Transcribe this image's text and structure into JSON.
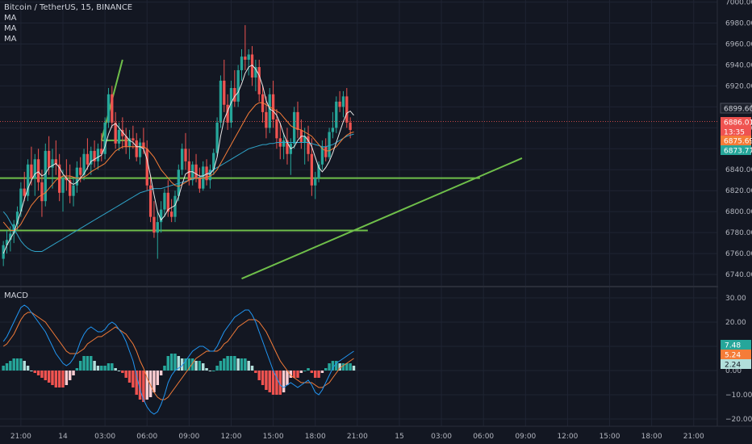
{
  "chart_data": {
    "type": "candlestick",
    "title": "Bitcoin / TetherUS, 15, BINANCE",
    "indicators": [
      "MA",
      "MA",
      "MA"
    ],
    "price_axis": {
      "ticks": [
        6740,
        6760,
        6780,
        6800,
        6820,
        6840,
        6860,
        6880,
        6900,
        6920,
        6940,
        6960,
        6980,
        7000
      ],
      "labels": [
        "6740.00",
        "6760.00",
        "6780.00",
        "6800.00",
        "6820.00",
        "6840.00",
        "6860.00",
        "6880.00",
        "6900.00",
        "6920.00",
        "6940.00",
        "6960.00",
        "6980.00",
        "7000.00"
      ],
      "range": [
        6730,
        7002
      ]
    },
    "price_badges": [
      {
        "label": "6899.60",
        "value": 6899.6,
        "color": "#1e222d",
        "text_color": "#d1d4dc"
      },
      {
        "label": "6886.01",
        "value": 6886.01,
        "color": "#ef5350",
        "text_color": "#ffffff"
      },
      {
        "label": "13:35",
        "value": 6880.5,
        "color": "#ef5350",
        "text_color": "#ffffff"
      },
      {
        "label": "6875.69",
        "value": 6875.69,
        "color": "#f57c38",
        "text_color": "#ffffff"
      },
      {
        "label": "6873.77",
        "value": 6873.77,
        "color": "#26a69a",
        "text_color": "#ffffff"
      }
    ],
    "x_axis": {
      "labels": [
        "21:00",
        "14",
        "03:00",
        "06:00",
        "09:00",
        "12:00",
        "15:00",
        "18:00",
        "21:00",
        "15",
        "03:00",
        "06:00",
        "09:00",
        "12:00",
        "15:00",
        "18:00",
        "21:00"
      ],
      "bar_index": [
        5,
        17,
        29,
        41,
        53,
        65,
        77,
        89,
        101,
        113,
        125,
        137,
        149,
        161,
        173,
        185,
        197
      ]
    },
    "bars_total": 204,
    "candles": [
      [
        6755,
        6772,
        6748,
        6768
      ],
      [
        6768,
        6782,
        6760,
        6773
      ],
      [
        6773,
        6786,
        6762,
        6779
      ],
      [
        6779,
        6792,
        6770,
        6788
      ],
      [
        6788,
        6805,
        6782,
        6800
      ],
      [
        6800,
        6828,
        6795,
        6822
      ],
      [
        6822,
        6838,
        6810,
        6815
      ],
      [
        6815,
        6850,
        6810,
        6845
      ],
      [
        6845,
        6862,
        6825,
        6832
      ],
      [
        6832,
        6855,
        6815,
        6850
      ],
      [
        6850,
        6860,
        6820,
        6828
      ],
      [
        6828,
        6840,
        6795,
        6810
      ],
      [
        6810,
        6865,
        6805,
        6858
      ],
      [
        6858,
        6872,
        6835,
        6842
      ],
      [
        6842,
        6860,
        6822,
        6850
      ],
      [
        6850,
        6868,
        6835,
        6845
      ],
      [
        6845,
        6855,
        6810,
        6818
      ],
      [
        6818,
        6840,
        6800,
        6832
      ],
      [
        6832,
        6850,
        6820,
        6830
      ],
      [
        6830,
        6845,
        6808,
        6815
      ],
      [
        6815,
        6832,
        6805,
        6825
      ],
      [
        6825,
        6848,
        6818,
        6842
      ],
      [
        6842,
        6852,
        6828,
        6835
      ],
      [
        6835,
        6860,
        6830,
        6855
      ],
      [
        6855,
        6870,
        6840,
        6845
      ],
      [
        6845,
        6862,
        6835,
        6858
      ],
      [
        6858,
        6868,
        6842,
        6848
      ],
      [
        6848,
        6865,
        6840,
        6860
      ],
      [
        6860,
        6875,
        6848,
        6855
      ],
      [
        6855,
        6890,
        6850,
        6885
      ],
      [
        6885,
        6918,
        6880,
        6912
      ],
      [
        6912,
        6920,
        6880,
        6885
      ],
      [
        6885,
        6895,
        6860,
        6865
      ],
      [
        6865,
        6885,
        6858,
        6878
      ],
      [
        6878,
        6890,
        6860,
        6872
      ],
      [
        6872,
        6880,
        6855,
        6862
      ],
      [
        6862,
        6878,
        6850,
        6870
      ],
      [
        6870,
        6882,
        6860,
        6868
      ],
      [
        6868,
        6875,
        6848,
        6852
      ],
      [
        6852,
        6870,
        6845,
        6866
      ],
      [
        6866,
        6880,
        6855,
        6860
      ],
      [
        6860,
        6868,
        6820,
        6825
      ],
      [
        6825,
        6835,
        6790,
        6795
      ],
      [
        6795,
        6810,
        6775,
        6780
      ],
      [
        6780,
        6800,
        6755,
        6790
      ],
      [
        6790,
        6810,
        6780,
        6802
      ],
      [
        6802,
        6822,
        6795,
        6818
      ],
      [
        6818,
        6830,
        6795,
        6800
      ],
      [
        6800,
        6812,
        6790,
        6795
      ],
      [
        6795,
        6820,
        6790,
        6815
      ],
      [
        6815,
        6845,
        6810,
        6840
      ],
      [
        6840,
        6865,
        6835,
        6860
      ],
      [
        6860,
        6875,
        6840,
        6848
      ],
      [
        6848,
        6860,
        6825,
        6830
      ],
      [
        6830,
        6848,
        6825,
        6845
      ],
      [
        6845,
        6855,
        6828,
        6832
      ],
      [
        6832,
        6842,
        6818,
        6822
      ],
      [
        6822,
        6848,
        6820,
        6843
      ],
      [
        6843,
        6850,
        6825,
        6830
      ],
      [
        6830,
        6845,
        6822,
        6840
      ],
      [
        6840,
        6860,
        6835,
        6856
      ],
      [
        6856,
        6890,
        6852,
        6885
      ],
      [
        6885,
        6930,
        6880,
        6925
      ],
      [
        6925,
        6945,
        6895,
        6902
      ],
      [
        6902,
        6912,
        6878,
        6885
      ],
      [
        6885,
        6925,
        6880,
        6918
      ],
      [
        6918,
        6935,
        6900,
        6905
      ],
      [
        6905,
        6940,
        6900,
        6935
      ],
      [
        6935,
        6955,
        6925,
        6948
      ],
      [
        6948,
        6978,
        6935,
        6945
      ],
      [
        6945,
        6955,
        6930,
        6950
      ],
      [
        6950,
        6958,
        6920,
        6928
      ],
      [
        6928,
        6945,
        6915,
        6938
      ],
      [
        6938,
        6945,
        6905,
        6912
      ],
      [
        6912,
        6920,
        6885,
        6895
      ],
      [
        6895,
        6910,
        6870,
        6880
      ],
      [
        6880,
        6918,
        6875,
        6912
      ],
      [
        6912,
        6925,
        6880,
        6888
      ],
      [
        6888,
        6898,
        6860,
        6870
      ],
      [
        6870,
        6885,
        6850,
        6862
      ],
      [
        6862,
        6875,
        6850,
        6868
      ],
      [
        6868,
        6880,
        6845,
        6855
      ],
      [
        6855,
        6870,
        6835,
        6865
      ],
      [
        6865,
        6900,
        6860,
        6895
      ],
      [
        6895,
        6905,
        6870,
        6878
      ],
      [
        6878,
        6888,
        6860,
        6866
      ],
      [
        6866,
        6880,
        6845,
        6872
      ],
      [
        6872,
        6882,
        6848,
        6855
      ],
      [
        6855,
        6870,
        6815,
        6825
      ],
      [
        6825,
        6838,
        6812,
        6832
      ],
      [
        6832,
        6848,
        6828,
        6845
      ],
      [
        6845,
        6868,
        6840,
        6862
      ],
      [
        6862,
        6870,
        6848,
        6852
      ],
      [
        6852,
        6880,
        6850,
        6876
      ],
      [
        6876,
        6895,
        6870,
        6880
      ],
      [
        6880,
        6910,
        6875,
        6905
      ],
      [
        6905,
        6915,
        6895,
        6900
      ],
      [
        6900,
        6915,
        6890,
        6910
      ],
      [
        6910,
        6918,
        6880,
        6885
      ],
      [
        6885,
        6890,
        6870,
        6878
      ]
    ],
    "ma_fast": [
      6760,
      6768,
      6774,
      6780,
      6790,
      6800,
      6812,
      6822,
      6830,
      6836,
      6838,
      6834,
      6836,
      6842,
      6844,
      6846,
      6842,
      6836,
      6832,
      6828,
      6826,
      6828,
      6832,
      6836,
      6842,
      6848,
      6850,
      6852,
      6854,
      6862,
      6874,
      6882,
      6884,
      6880,
      6876,
      6872,
      6868,
      6866,
      6862,
      6862,
      6860,
      6850,
      6834,
      6816,
      6800,
      6792,
      6796,
      6802,
      6804,
      6806,
      6814,
      6826,
      6836,
      6838,
      6838,
      6836,
      6834,
      6834,
      6836,
      6836,
      6840,
      6852,
      6872,
      6888,
      6896,
      6904,
      6910,
      6914,
      6922,
      6932,
      6938,
      6940,
      6936,
      6930,
      6920,
      6906,
      6898,
      6896,
      6892,
      6884,
      6874,
      6866,
      6860,
      6862,
      6868,
      6872,
      6872,
      6868,
      6862,
      6852,
      6842,
      6838,
      6842,
      6848,
      6856,
      6866,
      6876,
      6886,
      6894,
      6896,
      6892
    ],
    "ma_mid": [
      6790,
      6786,
      6782,
      6782,
      6784,
      6788,
      6794,
      6800,
      6806,
      6810,
      6814,
      6816,
      6818,
      6822,
      6826,
      6830,
      6832,
      6834,
      6834,
      6834,
      6833,
      6832,
      6832,
      6833,
      6835,
      6838,
      6840,
      6842,
      6844,
      6846,
      6850,
      6854,
      6858,
      6860,
      6862,
      6862,
      6862,
      6862,
      6862,
      6862,
      6862,
      6860,
      6856,
      6852,
      6846,
      6840,
      6836,
      6832,
      6828,
      6825,
      6824,
      6826,
      6828,
      6830,
      6832,
      6832,
      6832,
      6832,
      6833,
      6834,
      6836,
      6840,
      6846,
      6852,
      6858,
      6864,
      6870,
      6876,
      6882,
      6888,
      6894,
      6898,
      6902,
      6904,
      6904,
      6902,
      6900,
      6898,
      6896,
      6894,
      6890,
      6886,
      6882,
      6880,
      6879,
      6878,
      6876,
      6874,
      6872,
      6868,
      6864,
      6860,
      6858,
      6858,
      6860,
      6862,
      6866,
      6870,
      6873,
      6875,
      6876
    ],
    "ma_slow": [
      6800,
      6796,
      6790,
      6784,
      6778,
      6772,
      6768,
      6765,
      6763,
      6762,
      6762,
      6762,
      6764,
      6766,
      6768,
      6770,
      6772,
      6774,
      6776,
      6778,
      6780,
      6782,
      6784,
      6786,
      6788,
      6790,
      6792,
      6794,
      6796,
      6798,
      6800,
      6802,
      6804,
      6806,
      6808,
      6810,
      6812,
      6814,
      6816,
      6818,
      6819,
      6820,
      6821,
      6822,
      6822,
      6822,
      6823,
      6824,
      6825,
      6826,
      6827,
      6828,
      6829,
      6830,
      6831,
      6832,
      6833,
      6834,
      6836,
      6838,
      6840,
      6842,
      6844,
      6846,
      6848,
      6850,
      6852,
      6854,
      6856,
      6858,
      6860,
      6861,
      6862,
      6863,
      6864,
      6864,
      6865,
      6865,
      6866,
      6866,
      6866,
      6866,
      6866,
      6866,
      6866,
      6866,
      6866,
      6866,
      6865,
      6864,
      6863,
      6862,
      6862,
      6863,
      6864,
      6866,
      6868,
      6870,
      6872,
      6873,
      6874
    ],
    "trend_lines": [
      {
        "points": [
          [
            -2,
            6832
          ],
          [
            136,
            6832
          ]
        ],
        "color": "#6fbf4a"
      },
      {
        "points": [
          [
            -2,
            6782
          ],
          [
            104,
            6782
          ]
        ],
        "color": "#6fbf4a"
      },
      {
        "points": [
          [
            68,
            6736
          ],
          [
            148,
            6851
          ]
        ],
        "color": "#6fbf4a"
      },
      {
        "points": [
          [
            28,
            6868
          ],
          [
            34,
            6945
          ]
        ],
        "color": "#6fbf4a"
      },
      {
        "points": [
          [
            28,
            6868
          ],
          [
            36,
            6868
          ]
        ],
        "color": "#6fbf4a"
      }
    ],
    "macd": {
      "title": "MACD",
      "axis_ticks": [
        30,
        20,
        10,
        0,
        -10,
        -20
      ],
      "axis_labels": [
        "30.00",
        "20.00",
        "10.00",
        "0.00",
        "−10.00",
        "−20.00"
      ],
      "range": [
        -23,
        34
      ],
      "badges": [
        {
          "label": "7.48",
          "value": 7.48,
          "color": "#26a69a"
        },
        {
          "label": "5.24",
          "value": 5.24,
          "color": "#f57c38"
        },
        {
          "label": "2.24",
          "value": 2.24,
          "color": "#b2dfdb"
        }
      ],
      "macd_line": [
        12,
        14,
        17,
        20,
        23,
        26,
        27,
        26,
        24,
        22,
        20,
        18,
        16,
        13,
        10,
        7,
        5,
        3,
        2,
        3,
        5,
        8,
        12,
        15,
        17,
        18,
        17,
        16,
        16,
        17,
        19,
        20,
        19,
        17,
        15,
        12,
        8,
        4,
        -2,
        -8,
        -12,
        -15,
        -17,
        -18,
        -17,
        -14,
        -10,
        -5,
        -2,
        0,
        1,
        2,
        4,
        6,
        8,
        9,
        10,
        10,
        9,
        8,
        8,
        10,
        13,
        16,
        18,
        20,
        22,
        23,
        24,
        25,
        25,
        23,
        20,
        16,
        12,
        8,
        4,
        0,
        -3,
        -6,
        -7,
        -6,
        -5,
        -6,
        -7,
        -6,
        -5,
        -4,
        -6,
        -9,
        -10,
        -8,
        -5,
        -2,
        1,
        3,
        4,
        5,
        6,
        7,
        8
      ],
      "signal_line": [
        10,
        11,
        13,
        15,
        18,
        21,
        23,
        24,
        24,
        23,
        22,
        21,
        20,
        18,
        16,
        14,
        12,
        10,
        8,
        7,
        7,
        7,
        8,
        9,
        11,
        12,
        13,
        14,
        14,
        15,
        16,
        17,
        18,
        17,
        16,
        15,
        13,
        11,
        8,
        4,
        1,
        -3,
        -6,
        -9,
        -11,
        -12,
        -12,
        -11,
        -9,
        -7,
        -5,
        -3,
        -1,
        1,
        3,
        5,
        6,
        7,
        8,
        8,
        8,
        8,
        9,
        11,
        12,
        14,
        16,
        18,
        19,
        20,
        21,
        21,
        21,
        20,
        18,
        16,
        13,
        10,
        7,
        4,
        2,
        0,
        -2,
        -3,
        -4,
        -5,
        -5,
        -5,
        -5,
        -6,
        -7,
        -7,
        -6,
        -5,
        -3,
        -1,
        1,
        2,
        3,
        4,
        5
      ],
      "histogram": [
        2,
        3,
        4,
        5,
        5,
        5,
        4,
        2,
        0,
        -1,
        -2,
        -3,
        -4,
        -5,
        -6,
        -7,
        -7,
        -7,
        -6,
        -4,
        -2,
        1,
        4,
        6,
        6,
        6,
        4,
        2,
        2,
        2,
        3,
        3,
        1,
        0,
        -1,
        -3,
        -5,
        -7,
        -10,
        -12,
        -13,
        -12,
        -11,
        -9,
        -6,
        -2,
        2,
        6,
        7,
        7,
        6,
        5,
        5,
        5,
        5,
        4,
        4,
        3,
        1,
        0,
        0,
        2,
        4,
        5,
        6,
        6,
        6,
        5,
        5,
        5,
        4,
        2,
        -1,
        -4,
        -6,
        -8,
        -9,
        -10,
        -10,
        -10,
        -9,
        -6,
        -3,
        -3,
        -3,
        -1,
        0,
        1,
        -1,
        -3,
        -3,
        -1,
        1,
        3,
        4,
        4,
        3,
        3,
        3,
        3,
        2
      ]
    },
    "colors": {
      "background": "#131722",
      "grid": "#1f2433",
      "up": "#26a69a",
      "down": "#ef5350",
      "ma_fast": "#e8e8e8",
      "ma_mid": "#f57c38",
      "ma_slow": "#2fa4c9",
      "macd_line": "#2196f3",
      "signal_line": "#f57c38",
      "hist_up_strong": "#26a69a",
      "hist_up_weak": "#b2dfdb",
      "hist_down_strong": "#ef5350",
      "hist_down_weak": "#ffcdd2"
    }
  }
}
